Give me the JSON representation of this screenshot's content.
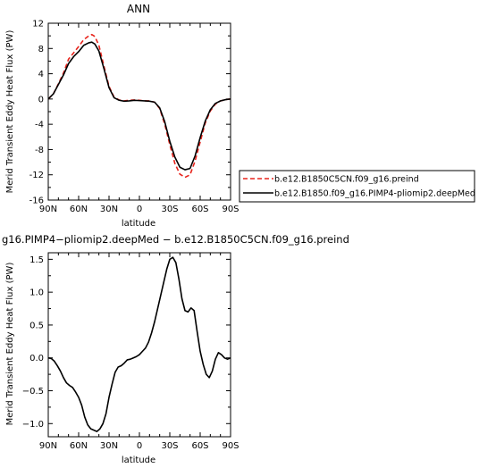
{
  "chart_data": [
    {
      "type": "line",
      "title": "ANN",
      "xlabel": "latitude",
      "ylabel": "Merid Transient Eddy Heat Flux (PW)",
      "xlim": [
        90,
        -90
      ],
      "ylim": [
        -16,
        12
      ],
      "x_ticks": [
        90,
        60,
        30,
        0,
        -30,
        -60,
        -90
      ],
      "x_tick_labels": [
        "90N",
        "60N",
        "30N",
        "0",
        "30S",
        "60S",
        "90S"
      ],
      "y_ticks": [
        12,
        8,
        4,
        0,
        -4,
        -8,
        -12,
        -16
      ],
      "y_tick_labels": [
        "12",
        "8",
        "4",
        "0",
        "-4",
        "-8",
        "-12",
        "-16"
      ],
      "legend_position": "right",
      "series": [
        {
          "name": "b.e12.B1850C5CN.f09_g16.preind",
          "color": "#e8241c",
          "dash": "dashed",
          "x": [
            90,
            85,
            80,
            75,
            70,
            65,
            60,
            55,
            50,
            47,
            44,
            40,
            35,
            30,
            25,
            20,
            15,
            10,
            5,
            0,
            -5,
            -10,
            -15,
            -20,
            -25,
            -30,
            -35,
            -40,
            -45,
            -50,
            -55,
            -60,
            -65,
            -70,
            -75,
            -80,
            -85,
            -90
          ],
          "y": [
            0,
            0.8,
            2.4,
            4.1,
            6.3,
            7.3,
            8.3,
            9.4,
            10.0,
            10.2,
            9.9,
            8.5,
            5.2,
            2.0,
            0.3,
            -0.15,
            -0.3,
            -0.2,
            -0.15,
            -0.2,
            -0.3,
            -0.3,
            -0.5,
            -1.5,
            -4.0,
            -7.2,
            -10.2,
            -11.9,
            -12.4,
            -12.0,
            -9.8,
            -6.8,
            -3.8,
            -1.9,
            -0.8,
            -0.3,
            -0.1,
            0
          ]
        },
        {
          "name": "b.e12.B1850.f09_g16.PIMP4-pliomip2.deepMed",
          "color": "#000000",
          "dash": "solid",
          "x": [
            90,
            85,
            80,
            75,
            70,
            65,
            60,
            55,
            50,
            47,
            44,
            40,
            35,
            30,
            25,
            20,
            15,
            10,
            5,
            0,
            -5,
            -10,
            -15,
            -20,
            -25,
            -30,
            -35,
            -40,
            -45,
            -50,
            -55,
            -60,
            -65,
            -70,
            -75,
            -80,
            -85,
            -90
          ],
          "y": [
            0,
            0.8,
            2.3,
            3.8,
            5.6,
            6.7,
            7.5,
            8.5,
            8.9,
            9.0,
            8.7,
            7.6,
            4.8,
            1.8,
            0.2,
            -0.2,
            -0.35,
            -0.3,
            -0.2,
            -0.25,
            -0.3,
            -0.35,
            -0.5,
            -1.4,
            -3.6,
            -6.7,
            -9.2,
            -10.8,
            -11.2,
            -11.0,
            -9.0,
            -6.1,
            -3.5,
            -1.7,
            -0.7,
            -0.3,
            -0.1,
            0
          ]
        }
      ]
    },
    {
      "type": "line",
      "title": "g16.PIMP4−pliomip2.deepMed  −  b.e12.B1850C5CN.f09_g16.preind",
      "xlabel": "latitude",
      "ylabel": "Merid Transient Eddy Heat Flux (PW)",
      "xlim": [
        90,
        -90
      ],
      "ylim": [
        -1.2,
        1.6
      ],
      "x_ticks": [
        90,
        60,
        30,
        0,
        -30,
        -60,
        -90
      ],
      "x_tick_labels": [
        "90N",
        "60N",
        "30N",
        "0",
        "30S",
        "60S",
        "90S"
      ],
      "y_ticks": [
        1.5,
        1.0,
        0.5,
        0.0,
        -0.5,
        -1.0
      ],
      "y_tick_labels": [
        "1.5",
        "1.0",
        "0.5",
        "0.0",
        "−0.5",
        "−1.0"
      ],
      "series": [
        {
          "color": "#000000",
          "dash": "solid",
          "x": [
            90,
            87,
            84,
            81,
            78,
            75,
            72,
            69,
            66,
            63,
            60,
            57,
            54,
            51,
            48,
            45,
            42,
            39,
            36,
            33,
            30,
            27,
            24,
            21,
            18,
            15,
            12,
            9,
            6,
            3,
            0,
            -3,
            -6,
            -9,
            -12,
            -15,
            -18,
            -21,
            -24,
            -27,
            -30,
            -33,
            -36,
            -39,
            -42,
            -45,
            -48,
            -51,
            -54,
            -57,
            -60,
            -63,
            -66,
            -69,
            -72,
            -75,
            -78,
            -81,
            -84,
            -87,
            -90
          ],
          "y": [
            0.0,
            -0.01,
            -0.05,
            -0.12,
            -0.2,
            -0.3,
            -0.38,
            -0.42,
            -0.45,
            -0.52,
            -0.6,
            -0.72,
            -0.9,
            -1.02,
            -1.08,
            -1.1,
            -1.12,
            -1.08,
            -1.0,
            -0.85,
            -0.6,
            -0.4,
            -0.22,
            -0.14,
            -0.12,
            -0.08,
            -0.03,
            -0.02,
            0.0,
            0.02,
            0.05,
            0.1,
            0.15,
            0.24,
            0.38,
            0.55,
            0.75,
            0.95,
            1.15,
            1.35,
            1.5,
            1.53,
            1.45,
            1.2,
            0.9,
            0.72,
            0.7,
            0.76,
            0.72,
            0.4,
            0.1,
            -0.1,
            -0.25,
            -0.3,
            -0.2,
            -0.02,
            0.08,
            0.05,
            0.0,
            -0.02,
            0.0
          ]
        }
      ]
    }
  ]
}
